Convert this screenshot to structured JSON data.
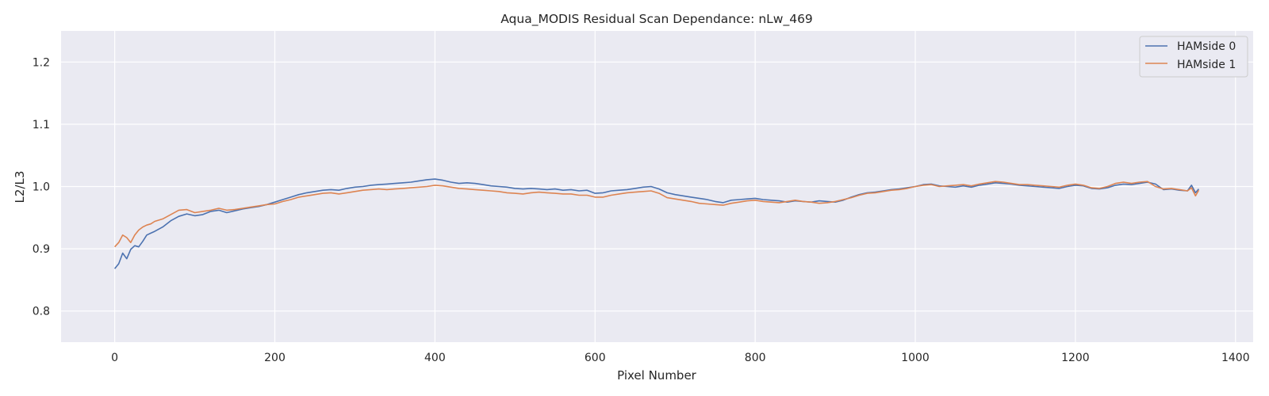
{
  "chart_data": {
    "type": "line",
    "title": "Aqua_MODIS Residual Scan Dependance: nLw_469",
    "xlabel": "Pixel Number",
    "ylabel": "L2/L3",
    "xlim": [
      -67,
      1422
    ],
    "ylim": [
      0.75,
      1.25
    ],
    "xticks": [
      0,
      200,
      400,
      600,
      800,
      1000,
      1200,
      1400
    ],
    "xtick_labels": [
      "0",
      "200",
      "400",
      "600",
      "800",
      "1000",
      "1200",
      "1400"
    ],
    "yticks": [
      0.8,
      0.9,
      1.0,
      1.1,
      1.2
    ],
    "ytick_labels": [
      "0.8",
      "0.9",
      "1.0",
      "1.1",
      "1.2"
    ],
    "grid": true,
    "legend_position": "top-right",
    "colors": {
      "plot_background": "#eaeaf2",
      "grid": "#ffffff",
      "text": "#262626"
    },
    "series": [
      {
        "name": "HAMside 0",
        "color": "#4c72b0",
        "x": [
          0,
          5,
          10,
          15,
          20,
          25,
          30,
          35,
          40,
          45,
          50,
          60,
          70,
          80,
          90,
          100,
          110,
          120,
          130,
          140,
          150,
          160,
          170,
          180,
          190,
          200,
          210,
          220,
          230,
          240,
          250,
          260,
          270,
          280,
          290,
          300,
          310,
          320,
          330,
          340,
          350,
          360,
          370,
          380,
          390,
          400,
          410,
          420,
          430,
          440,
          450,
          460,
          470,
          480,
          490,
          500,
          510,
          520,
          530,
          540,
          550,
          560,
          570,
          580,
          590,
          600,
          610,
          620,
          630,
          640,
          650,
          660,
          670,
          680,
          690,
          700,
          710,
          720,
          730,
          740,
          750,
          760,
          770,
          780,
          790,
          800,
          810,
          820,
          830,
          840,
          850,
          860,
          870,
          880,
          890,
          900,
          910,
          920,
          930,
          940,
          950,
          960,
          970,
          980,
          990,
          1000,
          1010,
          1020,
          1030,
          1040,
          1050,
          1060,
          1070,
          1080,
          1090,
          1100,
          1110,
          1120,
          1130,
          1140,
          1150,
          1160,
          1170,
          1180,
          1190,
          1200,
          1210,
          1220,
          1230,
          1240,
          1250,
          1260,
          1270,
          1280,
          1290,
          1300,
          1310,
          1320,
          1330,
          1340,
          1345,
          1350,
          1354
        ],
        "y": [
          0.868,
          0.876,
          0.893,
          0.884,
          0.899,
          0.905,
          0.903,
          0.912,
          0.922,
          0.925,
          0.928,
          0.935,
          0.945,
          0.952,
          0.956,
          0.953,
          0.955,
          0.96,
          0.962,
          0.958,
          0.961,
          0.964,
          0.966,
          0.968,
          0.971,
          0.975,
          0.979,
          0.983,
          0.987,
          0.99,
          0.992,
          0.994,
          0.995,
          0.994,
          0.997,
          0.999,
          1.0,
          1.002,
          1.003,
          1.004,
          1.005,
          1.006,
          1.007,
          1.009,
          1.011,
          1.012,
          1.01,
          1.007,
          1.005,
          1.006,
          1.005,
          1.003,
          1.001,
          1.0,
          0.999,
          0.997,
          0.996,
          0.997,
          0.996,
          0.995,
          0.996,
          0.994,
          0.995,
          0.993,
          0.994,
          0.989,
          0.99,
          0.993,
          0.994,
          0.995,
          0.997,
          0.999,
          1.0,
          0.996,
          0.99,
          0.987,
          0.985,
          0.983,
          0.981,
          0.979,
          0.976,
          0.974,
          0.978,
          0.979,
          0.98,
          0.981,
          0.979,
          0.978,
          0.977,
          0.975,
          0.977,
          0.976,
          0.975,
          0.977,
          0.976,
          0.975,
          0.978,
          0.983,
          0.987,
          0.99,
          0.991,
          0.993,
          0.995,
          0.996,
          0.998,
          1.0,
          1.003,
          1.004,
          1.001,
          1.0,
          0.999,
          1.001,
          0.999,
          1.002,
          1.004,
          1.006,
          1.005,
          1.004,
          1.002,
          1.001,
          1.0,
          0.999,
          0.998,
          0.997,
          1.0,
          1.002,
          1.001,
          0.997,
          0.996,
          0.998,
          1.002,
          1.004,
          1.003,
          1.005,
          1.007,
          1.004,
          0.995,
          0.996,
          0.994,
          0.993,
          1.002,
          0.99,
          0.996
        ]
      },
      {
        "name": "HAMside 1",
        "color": "#dd8452",
        "x": [
          0,
          5,
          10,
          15,
          20,
          25,
          30,
          35,
          40,
          45,
          50,
          60,
          70,
          80,
          90,
          100,
          110,
          120,
          130,
          140,
          150,
          160,
          170,
          180,
          190,
          200,
          210,
          220,
          230,
          240,
          250,
          260,
          270,
          280,
          290,
          300,
          310,
          320,
          330,
          340,
          350,
          360,
          370,
          380,
          390,
          400,
          410,
          420,
          430,
          440,
          450,
          460,
          470,
          480,
          490,
          500,
          510,
          520,
          530,
          540,
          550,
          560,
          570,
          580,
          590,
          600,
          610,
          620,
          630,
          640,
          650,
          660,
          670,
          680,
          690,
          700,
          710,
          720,
          730,
          740,
          750,
          760,
          770,
          780,
          790,
          800,
          810,
          820,
          830,
          840,
          850,
          860,
          870,
          880,
          890,
          900,
          910,
          920,
          930,
          940,
          950,
          960,
          970,
          980,
          990,
          1000,
          1010,
          1020,
          1030,
          1040,
          1050,
          1060,
          1070,
          1080,
          1090,
          1100,
          1110,
          1120,
          1130,
          1140,
          1150,
          1160,
          1170,
          1180,
          1190,
          1200,
          1210,
          1220,
          1230,
          1240,
          1250,
          1260,
          1270,
          1280,
          1290,
          1300,
          1310,
          1320,
          1330,
          1340,
          1345,
          1350,
          1354
        ],
        "y": [
          0.903,
          0.91,
          0.922,
          0.918,
          0.91,
          0.922,
          0.93,
          0.935,
          0.938,
          0.94,
          0.944,
          0.948,
          0.955,
          0.962,
          0.963,
          0.958,
          0.96,
          0.962,
          0.965,
          0.962,
          0.963,
          0.965,
          0.967,
          0.969,
          0.971,
          0.972,
          0.976,
          0.979,
          0.983,
          0.985,
          0.987,
          0.989,
          0.99,
          0.988,
          0.99,
          0.992,
          0.994,
          0.995,
          0.996,
          0.995,
          0.996,
          0.997,
          0.998,
          0.999,
          1.0,
          1.002,
          1.001,
          0.999,
          0.997,
          0.996,
          0.995,
          0.994,
          0.993,
          0.992,
          0.99,
          0.989,
          0.988,
          0.99,
          0.991,
          0.99,
          0.989,
          0.988,
          0.988,
          0.986,
          0.986,
          0.983,
          0.983,
          0.986,
          0.988,
          0.99,
          0.991,
          0.992,
          0.993,
          0.989,
          0.982,
          0.98,
          0.978,
          0.976,
          0.973,
          0.972,
          0.971,
          0.97,
          0.973,
          0.975,
          0.977,
          0.978,
          0.976,
          0.975,
          0.974,
          0.976,
          0.978,
          0.976,
          0.975,
          0.973,
          0.974,
          0.976,
          0.979,
          0.982,
          0.986,
          0.989,
          0.99,
          0.992,
          0.994,
          0.995,
          0.997,
          1.0,
          1.002,
          1.003,
          1.0,
          1.001,
          1.002,
          1.003,
          1.001,
          1.004,
          1.006,
          1.008,
          1.007,
          1.005,
          1.003,
          1.003,
          1.002,
          1.001,
          1.0,
          0.999,
          1.002,
          1.004,
          1.002,
          0.998,
          0.997,
          1.0,
          1.005,
          1.007,
          1.005,
          1.007,
          1.008,
          1.0,
          0.996,
          0.997,
          0.995,
          0.993,
          0.998,
          0.985,
          0.994
        ]
      }
    ]
  }
}
